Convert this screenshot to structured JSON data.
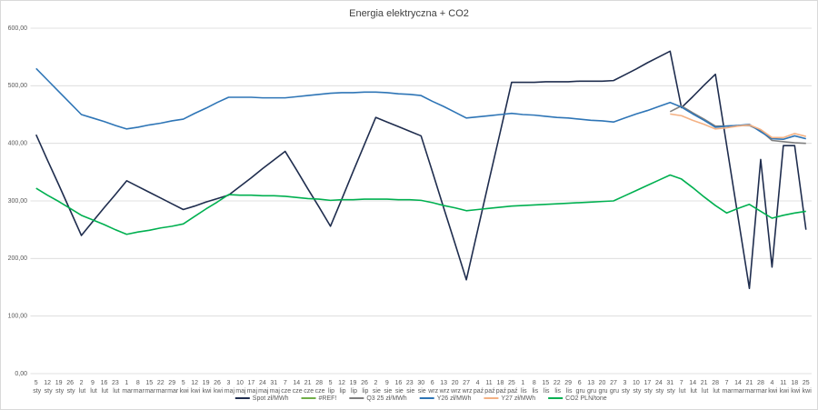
{
  "chart_data": {
    "type": "line",
    "title": "Energia elektryczna + CO2",
    "categories": [
      "5 sty",
      "12 sty",
      "19 sty",
      "26 sty",
      "2 lut",
      "9 lut",
      "16 lut",
      "23 lut",
      "1 mar",
      "8 mar",
      "15 mar",
      "22 mar",
      "29 mar",
      "5 kwi",
      "12 kwi",
      "19 kwi",
      "26 kwi",
      "3 maj",
      "10 maj",
      "17 maj",
      "24 maj",
      "31 maj",
      "7 cze",
      "14 cze",
      "21 cze",
      "28 cze",
      "5 lip",
      "12 lip",
      "19 lip",
      "26 lip",
      "2 sie",
      "9 sie",
      "16 sie",
      "23 sie",
      "30 sie",
      "6 wrz",
      "13 wrz",
      "20 wrz",
      "27 wrz",
      "4 paź",
      "11 paź",
      "18 paź",
      "25 paź",
      "1 lis",
      "8 lis",
      "15 lis",
      "22 lis",
      "29 lis",
      "6 gru",
      "13 gru",
      "20 gru",
      "27 gru",
      "3 sty",
      "10 sty",
      "17 sty",
      "24 sty",
      "31 sty",
      "7 lut",
      "14 lut",
      "21 lut",
      "28 lut",
      "7 mar",
      "14 mar",
      "21 mar",
      "28 mar",
      "4 kwi",
      "11 kwi",
      "18 kwi",
      "25 kwi"
    ],
    "ylim": [
      0,
      600
    ],
    "yticks": [
      {
        "value": 0,
        "label": "0,00"
      },
      {
        "value": 100,
        "label": "100,00"
      },
      {
        "value": 200,
        "label": "200,00"
      },
      {
        "value": 300,
        "label": "300,00"
      },
      {
        "value": 400,
        "label": "400,00"
      },
      {
        "value": 500,
        "label": "500,00"
      },
      {
        "value": 600,
        "label": "600,00"
      }
    ],
    "grid": true,
    "legend": "bottom",
    "series": [
      {
        "name": "Spot zł/MWh",
        "color": "#1f2d4e",
        "values": [
          415,
          371,
          328,
          284,
          240,
          264,
          288,
          311,
          335,
          325,
          315,
          305,
          295,
          285,
          291,
          298,
          304,
          310,
          325,
          340,
          356,
          371,
          386,
          354,
          321,
          289,
          256,
          303,
          351,
          398,
          445,
          437,
          429,
          421,
          413,
          351,
          288,
          226,
          163,
          249,
          335,
          420,
          506,
          506,
          506,
          507,
          507,
          507,
          508,
          508,
          508,
          509,
          519,
          529,
          540,
          550,
          560,
          462,
          481,
          501,
          520,
          396,
          272,
          148,
          372,
          185,
          396,
          396,
          250
        ]
      },
      {
        "name": "#REF!",
        "color": "#70ad47",
        "values": [
          null,
          null,
          null,
          null,
          null,
          null,
          null,
          null,
          null,
          null,
          null,
          null,
          null,
          null,
          null,
          null,
          null,
          null,
          null,
          null,
          null,
          null,
          null,
          null,
          null,
          null,
          null,
          null,
          null,
          null,
          null,
          null,
          null,
          null,
          null,
          null,
          null,
          null,
          null,
          null,
          null,
          null,
          null,
          null,
          null,
          null,
          null,
          null,
          null,
          null,
          null,
          null,
          null,
          null,
          null,
          null,
          null,
          null,
          null,
          null,
          null,
          null,
          null,
          null,
          null,
          null,
          null,
          null,
          null
        ]
      },
      {
        "name": "Q3 25 zł/MWh",
        "color": "#7f7f7f",
        "values": [
          null,
          null,
          null,
          null,
          null,
          null,
          null,
          null,
          null,
          null,
          null,
          null,
          null,
          null,
          null,
          null,
          null,
          null,
          null,
          null,
          null,
          null,
          null,
          null,
          null,
          null,
          null,
          null,
          null,
          null,
          null,
          null,
          null,
          null,
          null,
          null,
          null,
          null,
          null,
          null,
          null,
          null,
          null,
          null,
          null,
          null,
          null,
          null,
          null,
          null,
          null,
          null,
          null,
          null,
          null,
          null,
          455,
          465,
          453,
          442,
          430,
          430,
          431,
          431,
          422,
          405,
          403,
          401,
          400
        ]
      },
      {
        "name": "Y26 zł/MWh",
        "color": "#2e75b6",
        "values": [
          530,
          510,
          490,
          470,
          450,
          444,
          438,
          431,
          425,
          428,
          432,
          435,
          439,
          442,
          452,
          461,
          471,
          480,
          480,
          480,
          479,
          479,
          479,
          481,
          483,
          485,
          487,
          488,
          488,
          489,
          489,
          488,
          486,
          485,
          483,
          473,
          464,
          454,
          444,
          446,
          448,
          450,
          452,
          450,
          449,
          447,
          445,
          444,
          442,
          440,
          439,
          437,
          444,
          451,
          457,
          464,
          471,
          463,
          451,
          440,
          428,
          430,
          431,
          433,
          420,
          408,
          407,
          413,
          408
        ]
      },
      {
        "name": "Y27 zł/MWh",
        "color": "#f4b183",
        "values": [
          null,
          null,
          null,
          null,
          null,
          null,
          null,
          null,
          null,
          null,
          null,
          null,
          null,
          null,
          null,
          null,
          null,
          null,
          null,
          null,
          null,
          null,
          null,
          null,
          null,
          null,
          null,
          null,
          null,
          null,
          null,
          null,
          null,
          null,
          null,
          null,
          null,
          null,
          null,
          null,
          null,
          null,
          null,
          null,
          null,
          null,
          null,
          null,
          null,
          null,
          null,
          null,
          null,
          null,
          null,
          null,
          451,
          448,
          440,
          433,
          425,
          427,
          430,
          432,
          424,
          410,
          410,
          417,
          412
        ]
      },
      {
        "name": "CO2 PLN/tone",
        "color": "#00b050",
        "values": [
          322,
          310,
          299,
          287,
          275,
          267,
          259,
          250,
          242,
          246,
          249,
          253,
          256,
          260,
          273,
          286,
          298,
          311,
          310,
          310,
          309,
          309,
          308,
          306,
          304,
          303,
          301,
          302,
          302,
          303,
          303,
          303,
          302,
          302,
          301,
          297,
          292,
          288,
          283,
          285,
          287,
          289,
          291,
          292,
          293,
          294,
          295,
          296,
          297,
          298,
          299,
          300,
          309,
          318,
          327,
          336,
          345,
          338,
          323,
          307,
          292,
          279,
          287,
          294,
          282,
          270,
          275,
          279,
          282
        ]
      }
    ]
  }
}
